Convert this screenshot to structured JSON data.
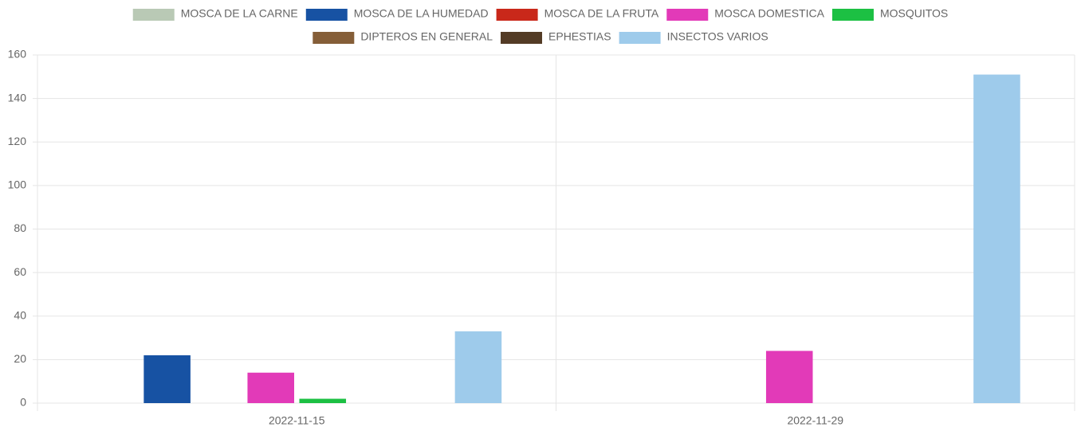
{
  "chart_data": {
    "type": "bar",
    "categories": [
      "2022-11-15",
      "2022-11-29"
    ],
    "series": [
      {
        "name": "MOSCA DE LA CARNE",
        "color": "#b9c9b5",
        "values": [
          0,
          0
        ]
      },
      {
        "name": "MOSCA DE LA HUMEDAD",
        "color": "#1752a3",
        "values": [
          22,
          0
        ]
      },
      {
        "name": "MOSCA DE LA FRUTA",
        "color": "#c9281a",
        "values": [
          0,
          0
        ]
      },
      {
        "name": "MOSCA DOMESTICA",
        "color": "#e23ab8",
        "values": [
          14,
          24
        ]
      },
      {
        "name": "MOSQUITOS",
        "color": "#1cc043",
        "values": [
          2,
          0
        ]
      },
      {
        "name": "DIPTEROS EN GENERAL",
        "color": "#855e38",
        "values": [
          0,
          0
        ]
      },
      {
        "name": "EPHESTIAS",
        "color": "#533b25",
        "values": [
          0,
          0
        ]
      },
      {
        "name": "INSECTOS VARIOS",
        "color": "#9ecbeb",
        "values": [
          33,
          151
        ]
      }
    ],
    "ylim": [
      0,
      160
    ],
    "yticks": [
      0,
      20,
      40,
      60,
      80,
      100,
      120,
      140,
      160
    ],
    "grid": true,
    "legend": "top"
  }
}
